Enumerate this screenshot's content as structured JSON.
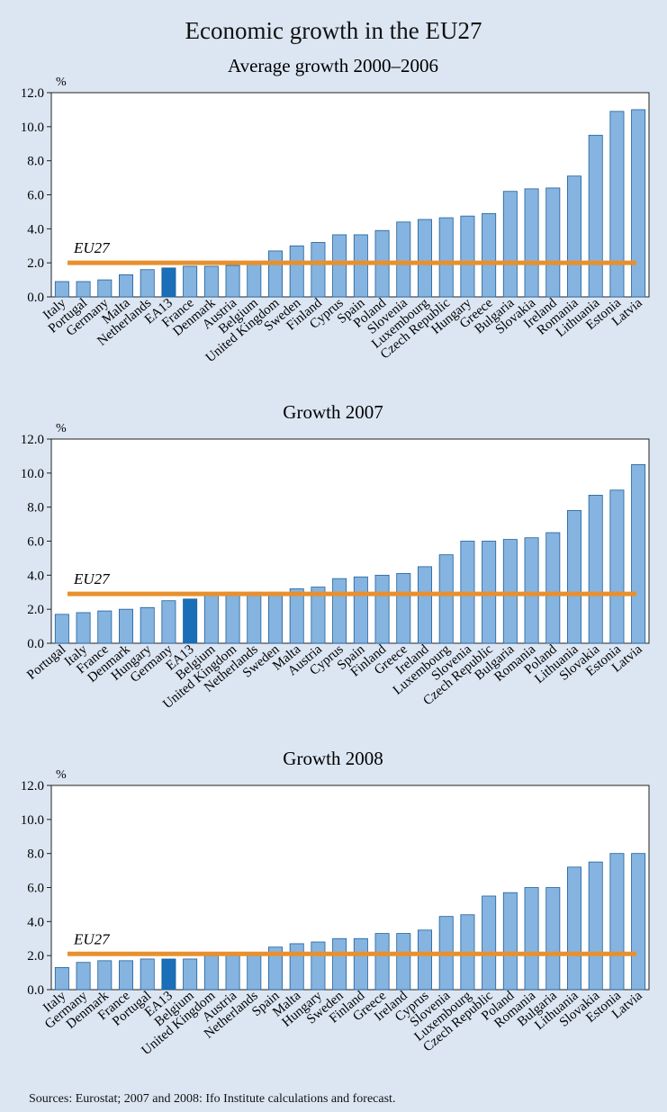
{
  "title": "Economic growth in the EU27",
  "sources": "Sources: Eurostat; 2007 and 2008: Ifo Institute calculations and forecast.",
  "colors": {
    "background": "#dce6f3",
    "bar": "#85b4e0",
    "bar_highlight": "#1a6fb8",
    "bar_stroke": "#1f5f9a",
    "reference_line": "#e8902e"
  },
  "chart_data": [
    {
      "type": "bar",
      "title": "Average growth 2000–2006",
      "ylabel": "%",
      "ylim": [
        0,
        12
      ],
      "yticks": [
        "0.0",
        "2.0",
        "4.0",
        "6.0",
        "8.0",
        "10.0",
        "12.0"
      ],
      "reference_line": {
        "label": "EU27",
        "value": 2.0
      },
      "highlight": "EA13",
      "categories": [
        "Italy",
        "Portugal",
        "Germany",
        "Malta",
        "Netherlands",
        "EA13",
        "France",
        "Denmark",
        "Austria",
        "Belgium",
        "United Kingdom",
        "Sweden",
        "Finland",
        "Cyprus",
        "Spain",
        "Poland",
        "Slovenia",
        "Luxembourg",
        "Czech Republic",
        "Hungary",
        "Greece",
        "Bulgaria",
        "Slovakia",
        "Ireland",
        "Romania",
        "Lithuania",
        "Estonia",
        "Latvia"
      ],
      "values": [
        0.9,
        0.9,
        1.0,
        1.3,
        1.6,
        1.7,
        1.8,
        1.8,
        1.85,
        1.9,
        2.7,
        3.0,
        3.2,
        3.65,
        3.65,
        3.9,
        4.4,
        4.55,
        4.65,
        4.75,
        4.9,
        6.2,
        6.35,
        6.4,
        7.1,
        9.5,
        10.9,
        11.0
      ]
    },
    {
      "type": "bar",
      "title": "Growth 2007",
      "ylabel": "%",
      "ylim": [
        0,
        12
      ],
      "yticks": [
        "0.0",
        "2.0",
        "4.0",
        "6.0",
        "8.0",
        "10.0",
        "12.0"
      ],
      "reference_line": {
        "label": "EU27",
        "value": 2.9
      },
      "highlight": "EA13",
      "categories": [
        "Portugal",
        "Italy",
        "France",
        "Denmark",
        "Hungary",
        "Germany",
        "EA13",
        "Belgium",
        "United Kingdom",
        "Netherlands",
        "Sweden",
        "Malta",
        "Austria",
        "Cyprus",
        "Spain",
        "Finland",
        "Greece",
        "Ireland",
        "Luxembourg",
        "Slovenia",
        "Czech Republic",
        "Bulgaria",
        "Romania",
        "Poland",
        "Lithuania",
        "Slovakia",
        "Estonia",
        "Latvia"
      ],
      "values": [
        1.7,
        1.8,
        1.9,
        2.0,
        2.1,
        2.5,
        2.6,
        2.8,
        3.0,
        3.0,
        3.0,
        3.2,
        3.3,
        3.8,
        3.9,
        4.0,
        4.1,
        4.5,
        5.2,
        6.0,
        6.0,
        6.1,
        6.2,
        6.5,
        7.8,
        8.7,
        9.0,
        10.5
      ]
    },
    {
      "type": "bar",
      "title": "Growth 2008",
      "ylabel": "%",
      "ylim": [
        0,
        12
      ],
      "yticks": [
        "0.0",
        "2.0",
        "4.0",
        "6.0",
        "8.0",
        "10.0",
        "12.0"
      ],
      "reference_line": {
        "label": "EU27",
        "value": 2.1
      },
      "highlight": "EA13",
      "categories": [
        "Italy",
        "Germany",
        "Denmark",
        "France",
        "Portugal",
        "EA13",
        "Belgium",
        "United Kingdom",
        "Austria",
        "Netherlands",
        "Spain",
        "Malta",
        "Hungary",
        "Sweden",
        "Finland",
        "Greece",
        "Ireland",
        "Cyprus",
        "Slovenia",
        "Luxembourg",
        "Czech Republic",
        "Poland",
        "Romania",
        "Bulgaria",
        "Lithuania",
        "Slovakia",
        "Estonia",
        "Latvia"
      ],
      "values": [
        1.3,
        1.6,
        1.7,
        1.7,
        1.8,
        1.8,
        1.8,
        2.0,
        2.1,
        2.2,
        2.5,
        2.7,
        2.8,
        3.0,
        3.0,
        3.3,
        3.3,
        3.5,
        4.3,
        4.4,
        5.5,
        5.7,
        6.0,
        6.0,
        7.2,
        7.5,
        8.0,
        8.0
      ]
    }
  ]
}
